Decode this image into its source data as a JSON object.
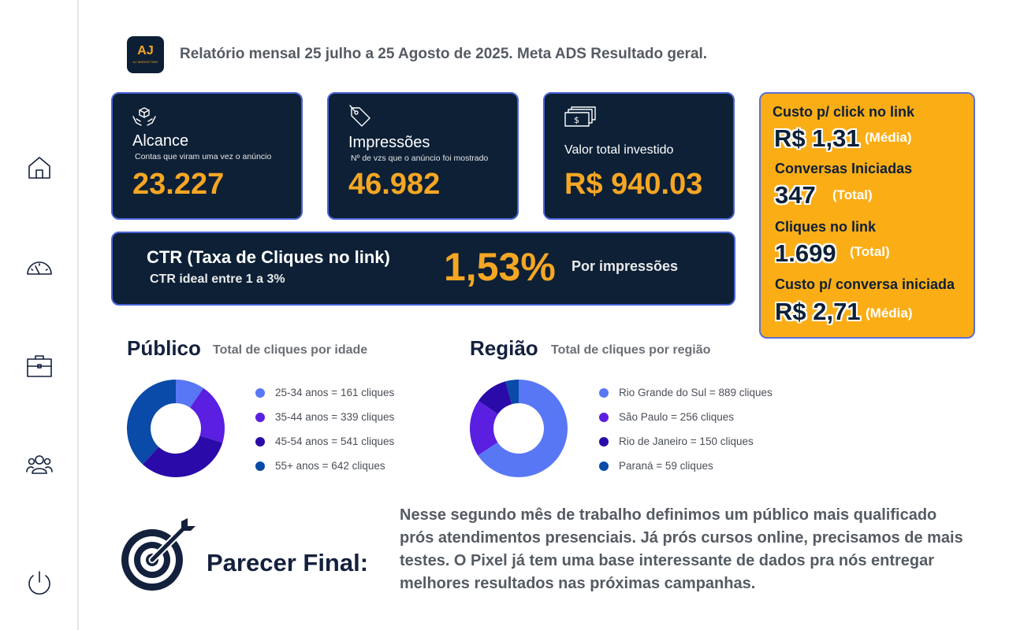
{
  "nav": {
    "items": [
      "home-icon",
      "gauge-icon",
      "briefcase-icon",
      "users-icon",
      "power-icon"
    ]
  },
  "header": {
    "logo_mark": "AJ",
    "logo_text": "AJ MARKETING",
    "title": "Relatório mensal 25 julho a 25 Agosto de 2025. Meta ADS Resultado geral."
  },
  "cards": {
    "alcance": {
      "title": "Alcance",
      "subtitle": "Contas que viram uma vez o anúncio",
      "value": "23.227"
    },
    "impressoes": {
      "title": "Impressões",
      "subtitle": "Nº de vzs que o anúncio foi mostrado",
      "value": "46.982"
    },
    "investido": {
      "title": "Valor total investido",
      "value": "R$ 940.03"
    }
  },
  "ctr": {
    "title": "CTR  (Taxa de Cliques no link)",
    "subtitle": "CTR ideal entre 1 a 3%",
    "value": "1,53%",
    "note": "Por impressões"
  },
  "kpis": [
    {
      "label": "Custo p/ click no link",
      "value": "R$ 1,31",
      "tag": "(Média)"
    },
    {
      "label": "Conversas Iniciadas",
      "value": "347",
      "tag": "(Total)"
    },
    {
      "label": "Cliques no link",
      "value": "1.699",
      "tag": "(Total)"
    },
    {
      "label": "Custo p/ conversa iniciada",
      "value": "R$ 2,71",
      "tag": "(Média)"
    }
  ],
  "publico": {
    "title": "Público",
    "subtitle": "Total de cliques por idade",
    "legend": [
      "25-34 anos = 161 cliques",
      "35-44 anos = 339 cliques",
      "45-54 anos = 541 cliques",
      "55+ anos = 642 cliques"
    ]
  },
  "regiao": {
    "title": "Região",
    "subtitle": "Total de cliques por região",
    "legend": [
      "Rio Grande do Sul = 889 cliques",
      "São Paulo = 256 cliques",
      "Rio de Janeiro = 150 cliques",
      "Paraná = 59 cliques"
    ]
  },
  "chart_data": [
    {
      "type": "pie",
      "categories": [
        "25-34 anos",
        "35-44 anos",
        "45-54 anos",
        "55+ anos"
      ],
      "values": [
        161,
        339,
        541,
        642
      ],
      "colors": [
        "#5877f5",
        "#5a1fe0",
        "#2a0aa8",
        "#0a4aa8"
      ]
    },
    {
      "type": "pie",
      "categories": [
        "Rio Grande do Sul",
        "São Paulo",
        "Rio de Janeiro",
        "Paraná"
      ],
      "values": [
        889,
        256,
        150,
        59
      ],
      "colors": [
        "#5877f5",
        "#5a1fe0",
        "#2a0aa8",
        "#0a4aa8"
      ]
    }
  ],
  "final": {
    "title": "Parecer Final:",
    "text": "Nesse segundo mês de trabalho definimos um público mais qualificado prós atendimentos presenciais. Já prós cursos online, precisamos de mais testes. O Pixel já tem uma base interessante de dados pra nós entregar melhores resultados nas próximas campanhas."
  },
  "colors": {
    "navy": "#0d2036",
    "accent": "#f5a623",
    "panel": "#fbad16",
    "border": "#4a63d6"
  }
}
